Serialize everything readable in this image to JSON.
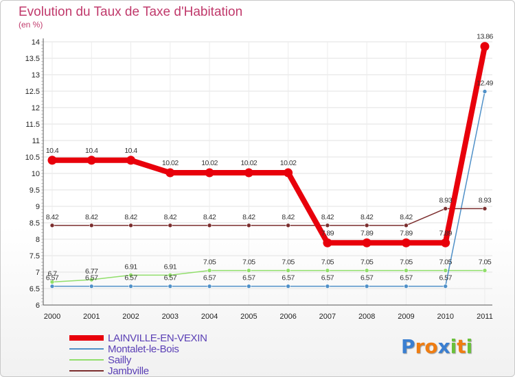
{
  "chart_data": {
    "type": "line",
    "title": "Evolution du Taux de Taxe d'Habitation",
    "subtitle": "(en %)",
    "xlabel": "",
    "ylabel": "",
    "categories": [
      "2000",
      "2001",
      "2002",
      "2003",
      "2004",
      "2005",
      "2006",
      "2007",
      "2008",
      "2009",
      "2010",
      "2011"
    ],
    "ylim": [
      6,
      14
    ],
    "yticks": [
      "6",
      "6.5",
      "7",
      "7.5",
      "8",
      "8.5",
      "9",
      "9.5",
      "10",
      "10.5",
      "11",
      "11.5",
      "12",
      "12.5",
      "13",
      "13.5",
      "14"
    ],
    "legend_position": "bottom-left",
    "series": [
      {
        "name": "LAINVILLE-EN-VEXIN",
        "color": "#e8000b",
        "values": [
          10.4,
          10.4,
          10.4,
          10.02,
          10.02,
          10.02,
          10.02,
          7.89,
          7.89,
          7.89,
          7.89,
          13.86
        ],
        "labels": [
          "10.4",
          "10.4",
          "10.4",
          "10.02",
          "10.02",
          "10.02",
          "10.02",
          "7.89",
          "7.89",
          "7.89",
          "7.89",
          "13.86"
        ]
      },
      {
        "name": "Montalet-le-Bois",
        "color": "#4f90c8",
        "values": [
          6.57,
          6.57,
          6.57,
          6.57,
          6.57,
          6.57,
          6.57,
          6.57,
          6.57,
          6.57,
          6.57,
          12.49
        ],
        "labels": [
          "6.57",
          "6.57",
          "6.57",
          "6.57",
          "6.57",
          "6.57",
          "6.57",
          "6.57",
          "6.57",
          "6.57",
          "6.57",
          "12.49"
        ]
      },
      {
        "name": "Sailly",
        "color": "#90de6a",
        "values": [
          6.7,
          6.77,
          6.91,
          6.91,
          7.05,
          7.05,
          7.05,
          7.05,
          7.05,
          7.05,
          7.05,
          7.05
        ],
        "labels": [
          "6.7",
          "6.77",
          "6.91",
          "6.91",
          "7.05",
          "7.05",
          "7.05",
          "7.05",
          "7.05",
          "7.05",
          "7.05",
          "7.05"
        ]
      },
      {
        "name": "Jambville",
        "color": "#7b2d2d",
        "values": [
          8.42,
          8.42,
          8.42,
          8.42,
          8.42,
          8.42,
          8.42,
          8.42,
          8.42,
          8.42,
          8.93,
          8.93
        ],
        "labels": [
          "8.42",
          "8.42",
          "8.42",
          "8.42",
          "8.42",
          "8.42",
          "8.42",
          "8.42",
          "8.42",
          "8.42",
          "8.93",
          "8.93"
        ]
      }
    ]
  },
  "logo": {
    "letters": [
      "P",
      "r",
      "o",
      "x",
      "i",
      "t",
      "i"
    ],
    "colors": [
      "#3a7fd1",
      "#ef7d12",
      "#ef7d12",
      "#3a7fd1",
      "#6ac13a",
      "#ef7d12",
      "#6ac13a"
    ]
  }
}
